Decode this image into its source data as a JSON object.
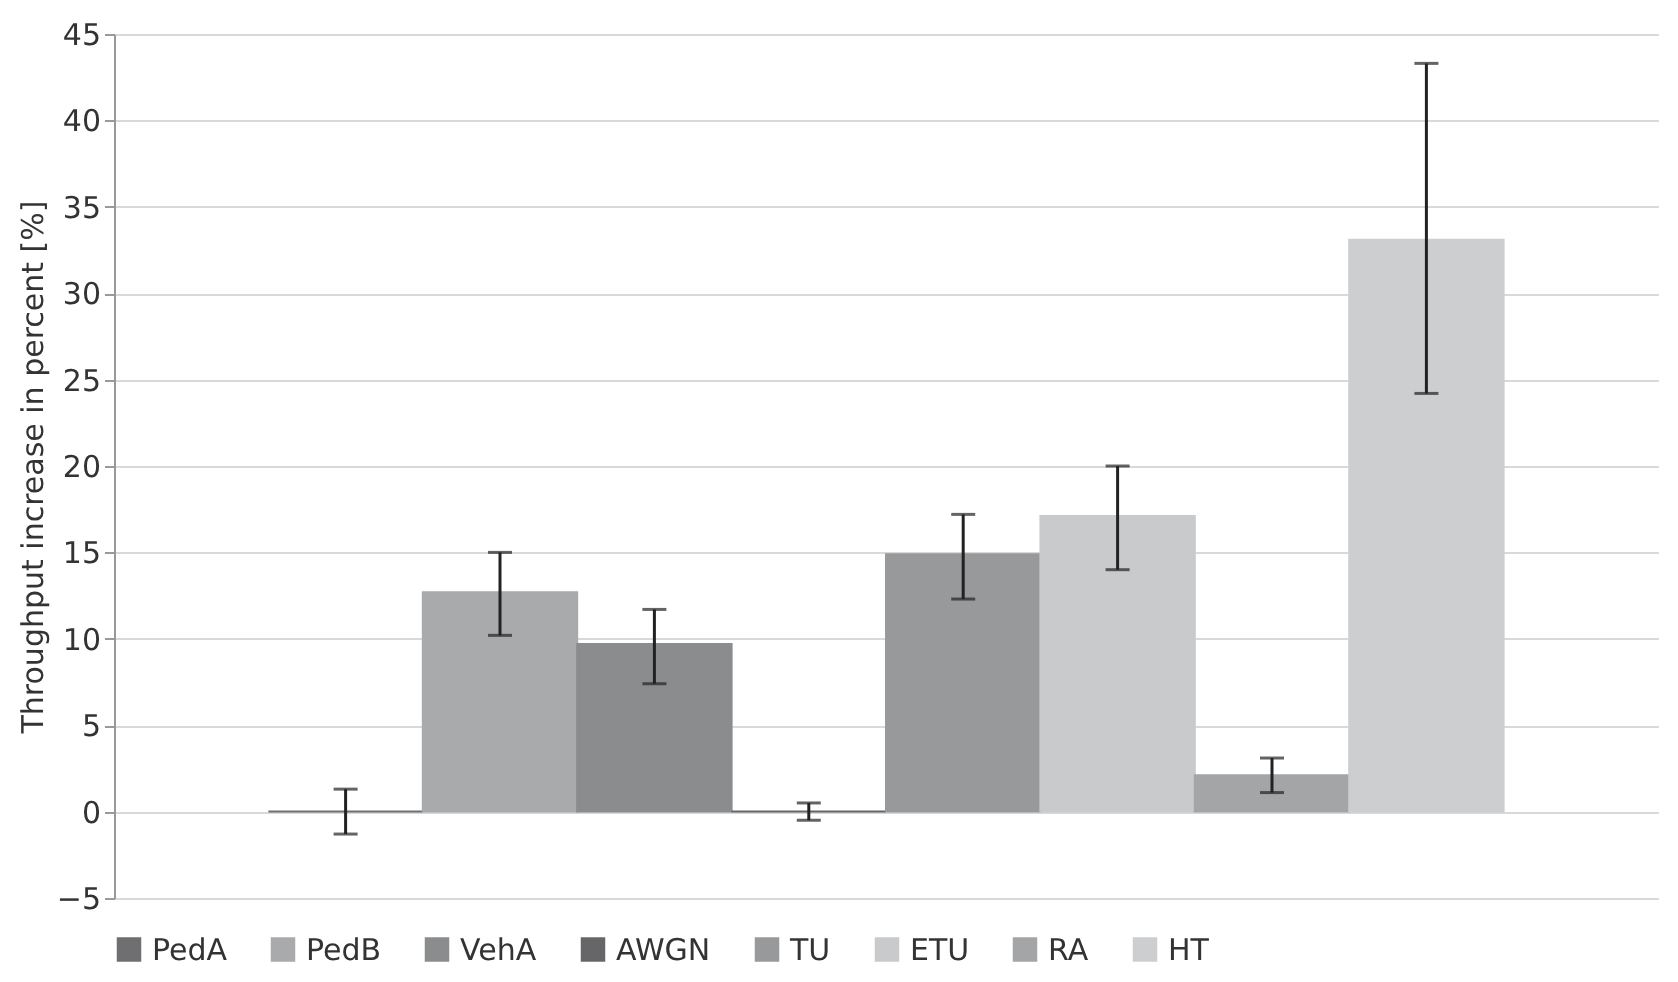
{
  "chart_data": {
    "type": "bar",
    "ylabel": "Throughput increase in percent [%]",
    "categories": [
      null
    ],
    "series": [
      {
        "name": "PedA",
        "color": "#6f6f71",
        "values": [
          0
        ],
        "errors": [
          [
            -1.3,
            1.3
          ]
        ]
      },
      {
        "name": "PedB",
        "color": "#a9aaac",
        "values": [
          12.7
        ],
        "errors": [
          [
            10.2,
            15
          ]
        ]
      },
      {
        "name": "VehA",
        "color": "#8b8c8e",
        "values": [
          9.7
        ],
        "errors": [
          [
            7.4,
            11.7
          ]
        ]
      },
      {
        "name": "AWGN",
        "color": "#666668",
        "values": [
          0
        ],
        "errors": [
          [
            -0.5,
            0.5
          ]
        ]
      },
      {
        "name": "TU",
        "color": "#98999b",
        "values": [
          14.9
        ],
        "errors": [
          [
            12.3,
            17.2
          ]
        ]
      },
      {
        "name": "ETU",
        "color": "#c9cacc",
        "values": [
          17.1
        ],
        "errors": [
          [
            14,
            20
          ]
        ]
      },
      {
        "name": "RA",
        "color": "#a4a5a7",
        "values": [
          2.1
        ],
        "errors": [
          [
            1.1,
            3.1
          ]
        ]
      },
      {
        "name": "HT",
        "color": "#cdced0",
        "values": [
          33.1
        ],
        "errors": [
          [
            24.2,
            43.3
          ]
        ]
      }
    ],
    "ylim": [
      -5,
      45
    ],
    "yticks": [
      -5,
      0,
      5,
      10,
      15,
      20,
      25,
      30,
      35,
      40,
      45
    ],
    "grid": "y",
    "legend": "bottom",
    "tick_labels": "y"
  }
}
